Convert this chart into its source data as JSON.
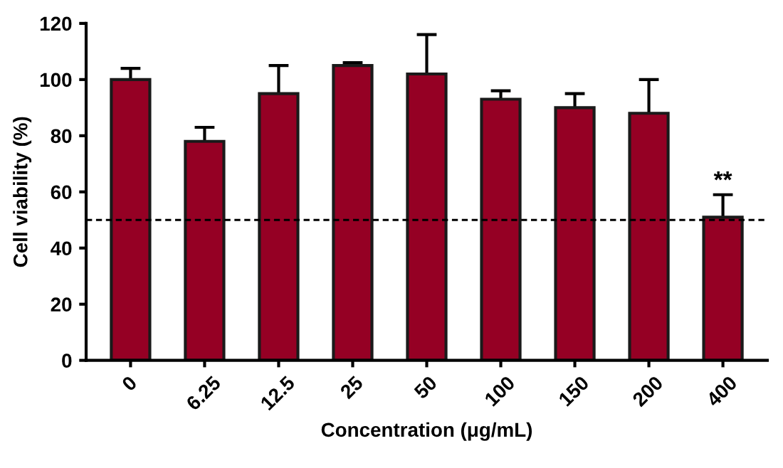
{
  "chart_data": {
    "type": "bar",
    "xlabel": "Concentration (μg/mL)",
    "ylabel": "Cell viability (%)",
    "categories": [
      "0",
      "6.25",
      "12.5",
      "25",
      "50",
      "100",
      "150",
      "200",
      "400"
    ],
    "values": [
      100,
      78,
      95,
      105,
      102,
      93,
      90,
      88,
      51
    ],
    "errors": [
      4,
      5,
      10,
      1,
      14,
      3,
      5,
      12,
      8
    ],
    "color": "#950024",
    "ylim": [
      0,
      120
    ],
    "yticks": [
      0,
      20,
      40,
      60,
      80,
      100,
      120
    ],
    "grid": false,
    "ref_lines": [
      {
        "axis": "y",
        "value": 50,
        "line_style": "dashed",
        "color": "#000000"
      }
    ],
    "annotations": [
      "**"
    ]
  }
}
